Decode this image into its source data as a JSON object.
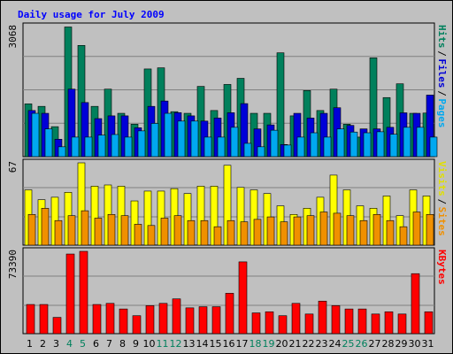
{
  "chart_data": {
    "type": "bar",
    "title": "Daily usage for July 2009",
    "categories": [
      "1",
      "2",
      "3",
      "4",
      "5",
      "6",
      "7",
      "8",
      "9",
      "10",
      "11",
      "12",
      "13",
      "14",
      "15",
      "16",
      "17",
      "18",
      "19",
      "20",
      "21",
      "22",
      "23",
      "24",
      "25",
      "26",
      "27",
      "28",
      "29",
      "30",
      "31"
    ],
    "weekend_days": [
      "4",
      "5",
      "11",
      "12",
      "18",
      "19",
      "25",
      "26"
    ],
    "panels": [
      {
        "id": "hits",
        "max_label": "3068",
        "ymax": 3068,
        "right_labels": [
          {
            "text": "Hits",
            "color": "#00805c"
          },
          {
            "text": "Files",
            "color": "#0000d8"
          },
          {
            "text": "Pages",
            "color": "#00a8f0"
          }
        ],
        "series": [
          {
            "name": "Hits",
            "color": "#00805c",
            "values": [
              1245,
              1186,
              707,
              3058,
              2623,
              1186,
              1592,
              1022,
              765,
              2068,
              2095,
              1061,
              1022,
              1657,
              1088,
              1703,
              1847,
              1022,
              1022,
              2449,
              962,
              1559,
              1088,
              1592,
              765,
              461,
              2331,
              1393,
              1718,
              1022,
              1028
            ]
          },
          {
            "name": "Files",
            "color": "#0000d8",
            "values": [
              1088,
              1022,
              411,
              1592,
              1276,
              897,
              962,
              962,
              681,
              1186,
              1312,
              1038,
              962,
              839,
              911,
              1036,
              1251,
              655,
              749,
              286,
              1022,
              911,
              1022,
              1154,
              737,
              655,
              655,
              692,
              1034,
              1022,
              1452
            ]
          },
          {
            "name": "Pages",
            "color": "#00a8f0",
            "values": [
              1022,
              655,
              233,
              461,
              461,
              508,
              522,
              461,
              608,
              784,
              1022,
              839,
              839,
              461,
              461,
              692,
              314,
              233,
              623,
              274,
              461,
              563,
              461,
              655,
              580,
              563,
              587,
              528,
              692,
              692,
              461
            ]
          }
        ]
      },
      {
        "id": "visits",
        "max_label": "67",
        "ymax": 67,
        "right_labels": [
          {
            "text": "Visits",
            "color": "#e0e000"
          },
          {
            "text": "Sites",
            "color": "#f09000"
          }
        ],
        "series": [
          {
            "name": "Visits",
            "color": "#ffff00",
            "values": [
              45,
              37,
              39,
              43,
              67,
              48,
              49,
              48,
              36,
              44,
              44,
              46,
              42,
              48,
              48,
              65,
              47,
              45,
              42,
              32,
              25,
              30,
              39,
              57,
              45,
              32,
              30,
              40,
              24,
              45,
              40
            ]
          },
          {
            "name": "Sites",
            "color": "#f09000",
            "values": [
              25,
              30,
              20,
              24,
              28,
              22,
              25,
              24,
              17,
              16,
              22,
              24,
              20,
              20,
              15,
              20,
              19,
              21,
              23,
              19,
              23,
              24,
              27,
              26,
              24,
              20,
              25,
              20,
              15,
              27,
              25
            ]
          }
        ]
      },
      {
        "id": "kbytes",
        "max_label": "73390",
        "ymax": 73390,
        "right_labels": [
          {
            "text": "KBytes",
            "color": "#ff0000"
          }
        ],
        "series": [
          {
            "name": "KBytes",
            "color": "#ff0000",
            "values": [
              26000,
              26000,
              14500,
              71000,
              73390,
              26000,
              27000,
              22000,
              16000,
              25000,
              27000,
              31000,
              23000,
              24000,
              24000,
              36000,
              64000,
              18500,
              19500,
              16000,
              27000,
              17500,
              29000,
              25000,
              22000,
              22000,
              17500,
              19500,
              17500,
              53500,
              19500
            ]
          }
        ]
      }
    ]
  }
}
